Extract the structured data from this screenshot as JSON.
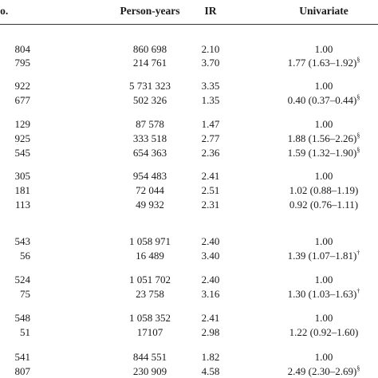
{
  "header": {
    "count": "nt No.",
    "person_years": "Person-years",
    "ir": "IR",
    "univariate": "Univariate"
  },
  "rows": [
    {
      "count": "804",
      "py": "860 698",
      "ir": "2.10",
      "uv": "1.00",
      "mark": ""
    },
    {
      "count": "795",
      "py": "214 761",
      "ir": "3.70",
      "uv": "1.77 (1.63–1.92)",
      "mark": "§"
    },
    {
      "count": "922",
      "py": "5 731 323",
      "ir": "3.35",
      "uv": "1.00",
      "mark": ""
    },
    {
      "count": "677",
      "py": "502 326",
      "ir": "1.35",
      "uv": "0.40 (0.37–0.44)",
      "mark": "§"
    },
    {
      "count": "129",
      "py": "87 578",
      "ir": "1.47",
      "uv": "1.00",
      "mark": ""
    },
    {
      "count": "925",
      "py": "333 518",
      "ir": "2.77",
      "uv": "1.88 (1.56–2.26)",
      "mark": "§"
    },
    {
      "count": "545",
      "py": "654 363",
      "ir": "2.36",
      "uv": "1.59 (1.32–1.90)",
      "mark": "§"
    },
    {
      "count": "305",
      "py": "954 483",
      "ir": "2.41",
      "uv": "1.00",
      "mark": ""
    },
    {
      "count": "181",
      "py": "72 044",
      "ir": "2.51",
      "uv": "1.02 (0.88–1.19)",
      "mark": ""
    },
    {
      "count": "113",
      "py": "49 932",
      "ir": "2.31",
      "uv": "0.92 (0.76–1.11)",
      "mark": ""
    },
    {
      "count": "543",
      "py": "1 058 971",
      "ir": "2.40",
      "uv": "1.00",
      "mark": ""
    },
    {
      "count": "56",
      "py": "16 489",
      "ir": "3.40",
      "uv": "1.39 (1.07–1.81)",
      "mark": "†"
    },
    {
      "count": "524",
      "py": "1 051 702",
      "ir": "2.40",
      "uv": "1.00",
      "mark": ""
    },
    {
      "count": "75",
      "py": "23 758",
      "ir": "3.16",
      "uv": "1.30 (1.03–1.63)",
      "mark": "†"
    },
    {
      "count": "548",
      "py": "1 058 352",
      "ir": "2.41",
      "uv": "1.00",
      "mark": ""
    },
    {
      "count": "51",
      "py": "17107",
      "ir": "2.98",
      "uv": "1.22 (0.92–1.60)",
      "mark": ""
    },
    {
      "count": "541",
      "py": "844 551",
      "ir": "1.82",
      "uv": "1.00",
      "mark": ""
    },
    {
      "count": "807",
      "py": "230 909",
      "ir": "4.58",
      "uv": "2.49 (2.30–2.69)",
      "mark": "§"
    }
  ]
}
